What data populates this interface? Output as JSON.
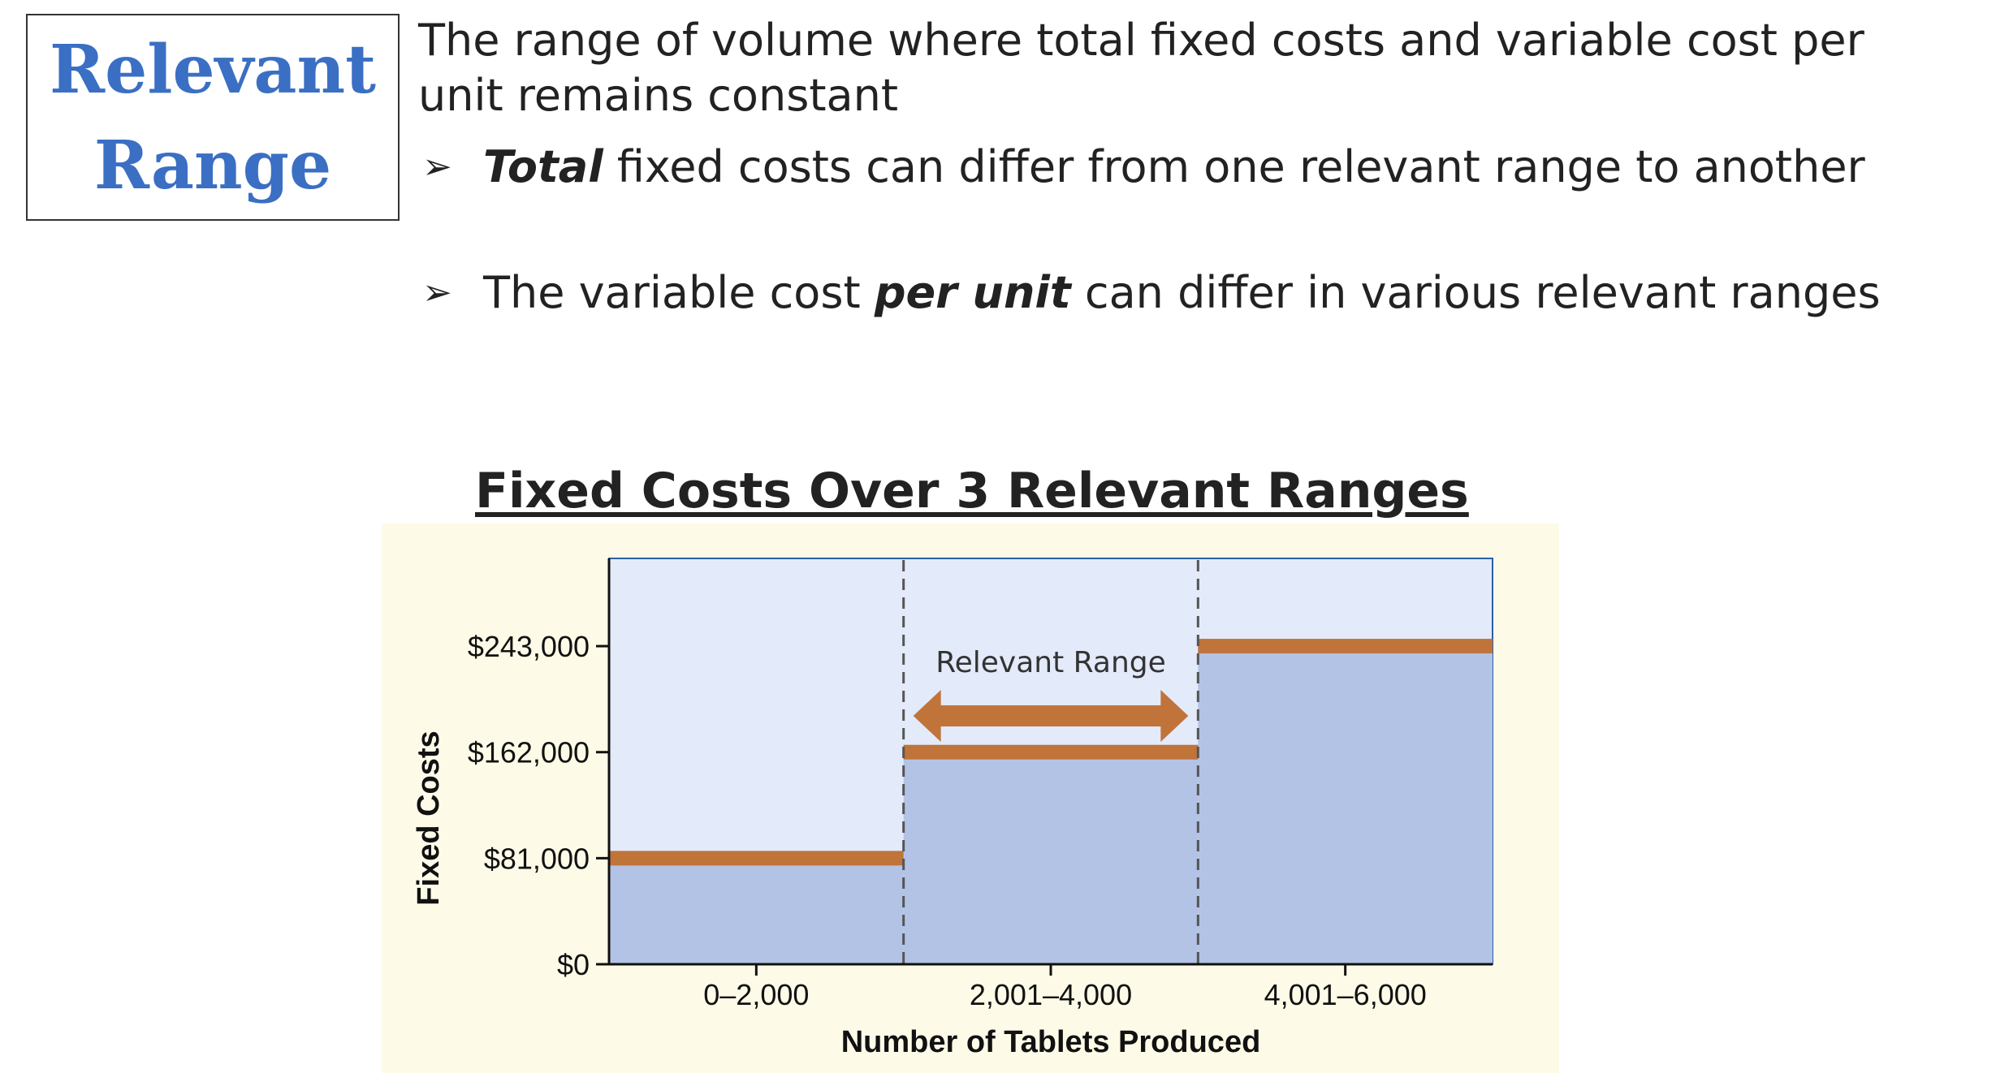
{
  "slide": {
    "title_line1": "Relevant",
    "title_line2": "Range",
    "definition": "The range of volume where total fixed costs and variable cost per unit remains constant",
    "bullets": [
      {
        "emphasis": "Total",
        "rest": " fixed costs can differ from one relevant range to another"
      },
      {
        "before": "The variable cost ",
        "emphasis": "per unit",
        "rest": " can differ in various relevant ranges"
      }
    ],
    "bullet_symbol": "➢"
  },
  "colors": {
    "title_blue": "#3a6fc4",
    "plot_background": "#e3eafa",
    "fill_area": "#b3c3e6",
    "cost_line": "#c0743a",
    "chart_panel": "#fdfbe8"
  },
  "chart_data": {
    "type": "bar",
    "title": "Fixed Costs Over 3 Relevant Ranges",
    "xlabel": "Number of Tablets Produced",
    "ylabel": "Fixed Costs",
    "categories": [
      "0–2,000",
      "2,001–4,000",
      "4,001–6,000"
    ],
    "values": [
      81000,
      162000,
      243000
    ],
    "y_ticks": [
      0,
      81000,
      162000,
      243000
    ],
    "y_tick_labels": [
      "$0",
      "$81,000",
      "$162,000",
      "$243,000"
    ],
    "ylim": [
      0,
      310000
    ],
    "annotation": "Relevant Range",
    "annotation_category_index": 1,
    "grid": false,
    "legend": "none"
  }
}
